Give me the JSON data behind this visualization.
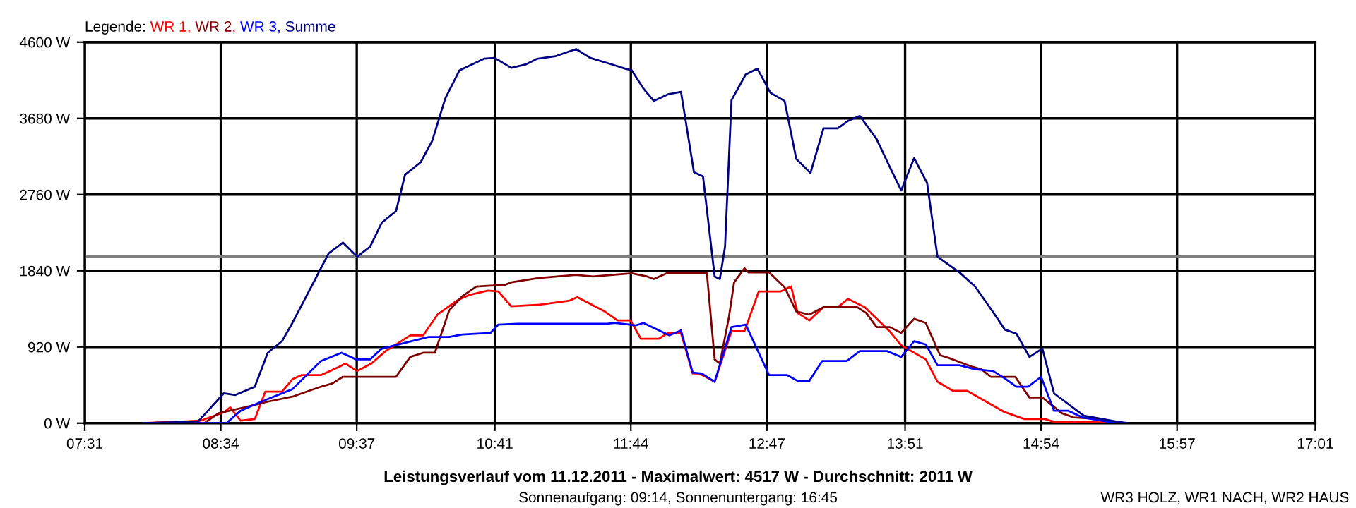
{
  "chart_data": {
    "type": "line",
    "title": "Leistungsverlauf vom 11.12.2011 - Maximalwert: 4517 W - Durchschnitt: 2011 W",
    "subtitle": "Sonnenaufgang: 09:14, Sonnenuntergang: 16:45",
    "legend_title": "Legende:",
    "legend": "top left",
    "grid": true,
    "line_style": "solid",
    "marker": "none",
    "annotations": [
      "WR3 HOLZ, WR1 NACH, WR2 HAUS"
    ],
    "xlim": [
      7.517,
      17.017
    ],
    "xticks": [
      {
        "value": 7.517,
        "label": "07:31"
      },
      {
        "value": 8.567,
        "label": "08:34"
      },
      {
        "value": 9.617,
        "label": "09:37"
      },
      {
        "value": 10.683,
        "label": "10:41"
      },
      {
        "value": 11.733,
        "label": "11:44"
      },
      {
        "value": 12.783,
        "label": "12:47"
      },
      {
        "value": 13.85,
        "label": "13:51"
      },
      {
        "value": 14.9,
        "label": "14:54"
      },
      {
        "value": 15.95,
        "label": "15:57"
      },
      {
        "value": 17.017,
        "label": "17:01"
      }
    ],
    "ylim": [
      0,
      4600
    ],
    "yticks": [
      {
        "value": 0,
        "label": "0 W"
      },
      {
        "value": 920,
        "label": "920 W"
      },
      {
        "value": 1840,
        "label": "1840 W"
      },
      {
        "value": 2760,
        "label": "2760 W"
      },
      {
        "value": 3680,
        "label": "3680 W"
      },
      {
        "value": 4600,
        "label": "4600 W"
      }
    ],
    "ref_lines": [
      {
        "axis": "y",
        "value": 2011,
        "color": "#808080"
      }
    ],
    "series": [
      {
        "name": "WR 1,",
        "color": "#ff0000",
        "x": [
          7.97,
          8.41,
          8.59,
          8.64,
          8.72,
          8.83,
          8.91,
          9.04,
          9.12,
          9.19,
          9.34,
          9.48,
          9.53,
          9.62,
          9.73,
          9.84,
          10.03,
          10.13,
          10.24,
          10.39,
          10.49,
          10.63,
          10.71,
          10.81,
          11.03,
          11.26,
          11.32,
          11.53,
          11.63,
          11.73,
          11.81,
          11.95,
          12.02,
          12.12,
          12.21,
          12.26,
          12.38,
          12.51,
          12.61,
          12.72,
          12.89,
          12.97,
          13.02,
          13.11,
          13.22,
          13.33,
          13.41,
          13.54,
          13.73,
          13.82,
          14.01,
          14.1,
          14.22,
          14.33,
          14.61,
          14.77,
          14.93,
          14.99,
          15.37,
          15.48
        ],
        "values": [
          0,
          30,
          130,
          190,
          30,
          50,
          380,
          380,
          530,
          580,
          580,
          680,
          720,
          630,
          720,
          870,
          1060,
          1060,
          1310,
          1480,
          1550,
          1600,
          1590,
          1410,
          1430,
          1480,
          1520,
          1350,
          1240,
          1240,
          1020,
          1020,
          1090,
          1090,
          600,
          600,
          500,
          1110,
          1110,
          1590,
          1590,
          1650,
          1330,
          1240,
          1400,
          1400,
          1500,
          1400,
          1110,
          940,
          770,
          500,
          390,
          390,
          140,
          50,
          50,
          20,
          10,
          0
        ]
      },
      {
        "name": "WR 2,",
        "color": "#800000",
        "x": [
          7.97,
          8.44,
          8.55,
          8.75,
          8.93,
          9.12,
          9.32,
          9.43,
          9.51,
          9.92,
          10.03,
          10.13,
          10.22,
          10.33,
          10.43,
          10.54,
          10.76,
          10.81,
          11.01,
          11.31,
          11.44,
          11.74,
          11.86,
          11.91,
          12.01,
          12.32,
          12.38,
          12.42,
          12.49,
          12.53,
          12.61,
          12.64,
          12.8,
          12.92,
          13.01,
          13.11,
          13.22,
          13.48,
          13.55,
          13.63,
          13.73,
          13.82,
          13.92,
          14.01,
          14.12,
          14.2,
          14.37,
          14.44,
          14.51,
          14.7,
          14.81,
          14.91,
          15.06,
          15.15,
          15.37,
          15.48
        ],
        "values": [
          0,
          0,
          120,
          190,
          260,
          320,
          430,
          480,
          560,
          560,
          800,
          850,
          850,
          1360,
          1530,
          1650,
          1670,
          1700,
          1750,
          1790,
          1770,
          1810,
          1770,
          1740,
          1810,
          1810,
          770,
          720,
          1280,
          1700,
          1870,
          1820,
          1820,
          1640,
          1350,
          1310,
          1400,
          1400,
          1330,
          1160,
          1160,
          1090,
          1260,
          1210,
          820,
          780,
          680,
          650,
          560,
          560,
          310,
          310,
          120,
          70,
          50,
          0
        ]
      },
      {
        "name": "WR 3,",
        "color": "#0000ff",
        "x": [
          7.97,
          8.61,
          8.72,
          8.88,
          9.12,
          9.34,
          9.5,
          9.61,
          9.72,
          9.81,
          9.99,
          10.17,
          10.33,
          10.43,
          10.65,
          10.71,
          10.86,
          11.55,
          11.61,
          11.77,
          11.83,
          12.03,
          12.12,
          12.21,
          12.28,
          12.38,
          12.51,
          12.62,
          12.8,
          12.94,
          13.02,
          13.11,
          13.21,
          13.4,
          13.5,
          13.71,
          13.82,
          13.92,
          14.01,
          14.1,
          14.27,
          14.39,
          14.53,
          14.62,
          14.71,
          14.8,
          14.9,
          15.0,
          15.11,
          15.22,
          15.48
        ],
        "values": [
          0,
          0,
          150,
          260,
          410,
          750,
          850,
          770,
          770,
          900,
          970,
          1040,
          1040,
          1070,
          1090,
          1190,
          1200,
          1200,
          1210,
          1180,
          1210,
          1060,
          1120,
          610,
          600,
          500,
          1160,
          1190,
          580,
          580,
          510,
          510,
          750,
          750,
          870,
          870,
          800,
          990,
          950,
          700,
          700,
          650,
          630,
          540,
          440,
          440,
          560,
          150,
          150,
          70,
          0
        ]
      },
      {
        "name": "Summe",
        "color": "#000080",
        "x": [
          7.97,
          8.39,
          8.41,
          8.59,
          8.68,
          8.83,
          8.93,
          9.04,
          9.12,
          9.21,
          9.34,
          9.4,
          9.51,
          9.62,
          9.72,
          9.81,
          9.92,
          9.99,
          10.11,
          10.2,
          10.3,
          10.41,
          10.6,
          10.68,
          10.81,
          10.92,
          11.01,
          11.15,
          11.31,
          11.42,
          11.59,
          11.69,
          11.74,
          11.83,
          11.91,
          12.02,
          12.12,
          12.22,
          12.29,
          12.38,
          12.42,
          12.46,
          12.51,
          12.62,
          12.71,
          12.81,
          12.92,
          13.01,
          13.12,
          13.22,
          13.33,
          13.41,
          13.5,
          13.63,
          13.73,
          13.82,
          13.92,
          14.02,
          14.1,
          14.27,
          14.39,
          14.53,
          14.62,
          14.71,
          14.81,
          14.91,
          15.0,
          15.23,
          15.48,
          15.57
        ],
        "values": [
          0,
          20,
          50,
          360,
          340,
          440,
          850,
          990,
          1210,
          1480,
          1870,
          2050,
          2180,
          2010,
          2130,
          2420,
          2560,
          3000,
          3150,
          3410,
          3920,
          4260,
          4400,
          4410,
          4290,
          4330,
          4400,
          4430,
          4517,
          4410,
          4330,
          4280,
          4260,
          4040,
          3890,
          3970,
          4000,
          3030,
          2980,
          1770,
          1740,
          2130,
          3900,
          4210,
          4280,
          3990,
          3890,
          3190,
          3020,
          3560,
          3560,
          3650,
          3710,
          3430,
          3100,
          2810,
          3200,
          2900,
          2010,
          1820,
          1650,
          1340,
          1130,
          1080,
          800,
          900,
          360,
          90,
          20,
          0
        ]
      }
    ]
  }
}
